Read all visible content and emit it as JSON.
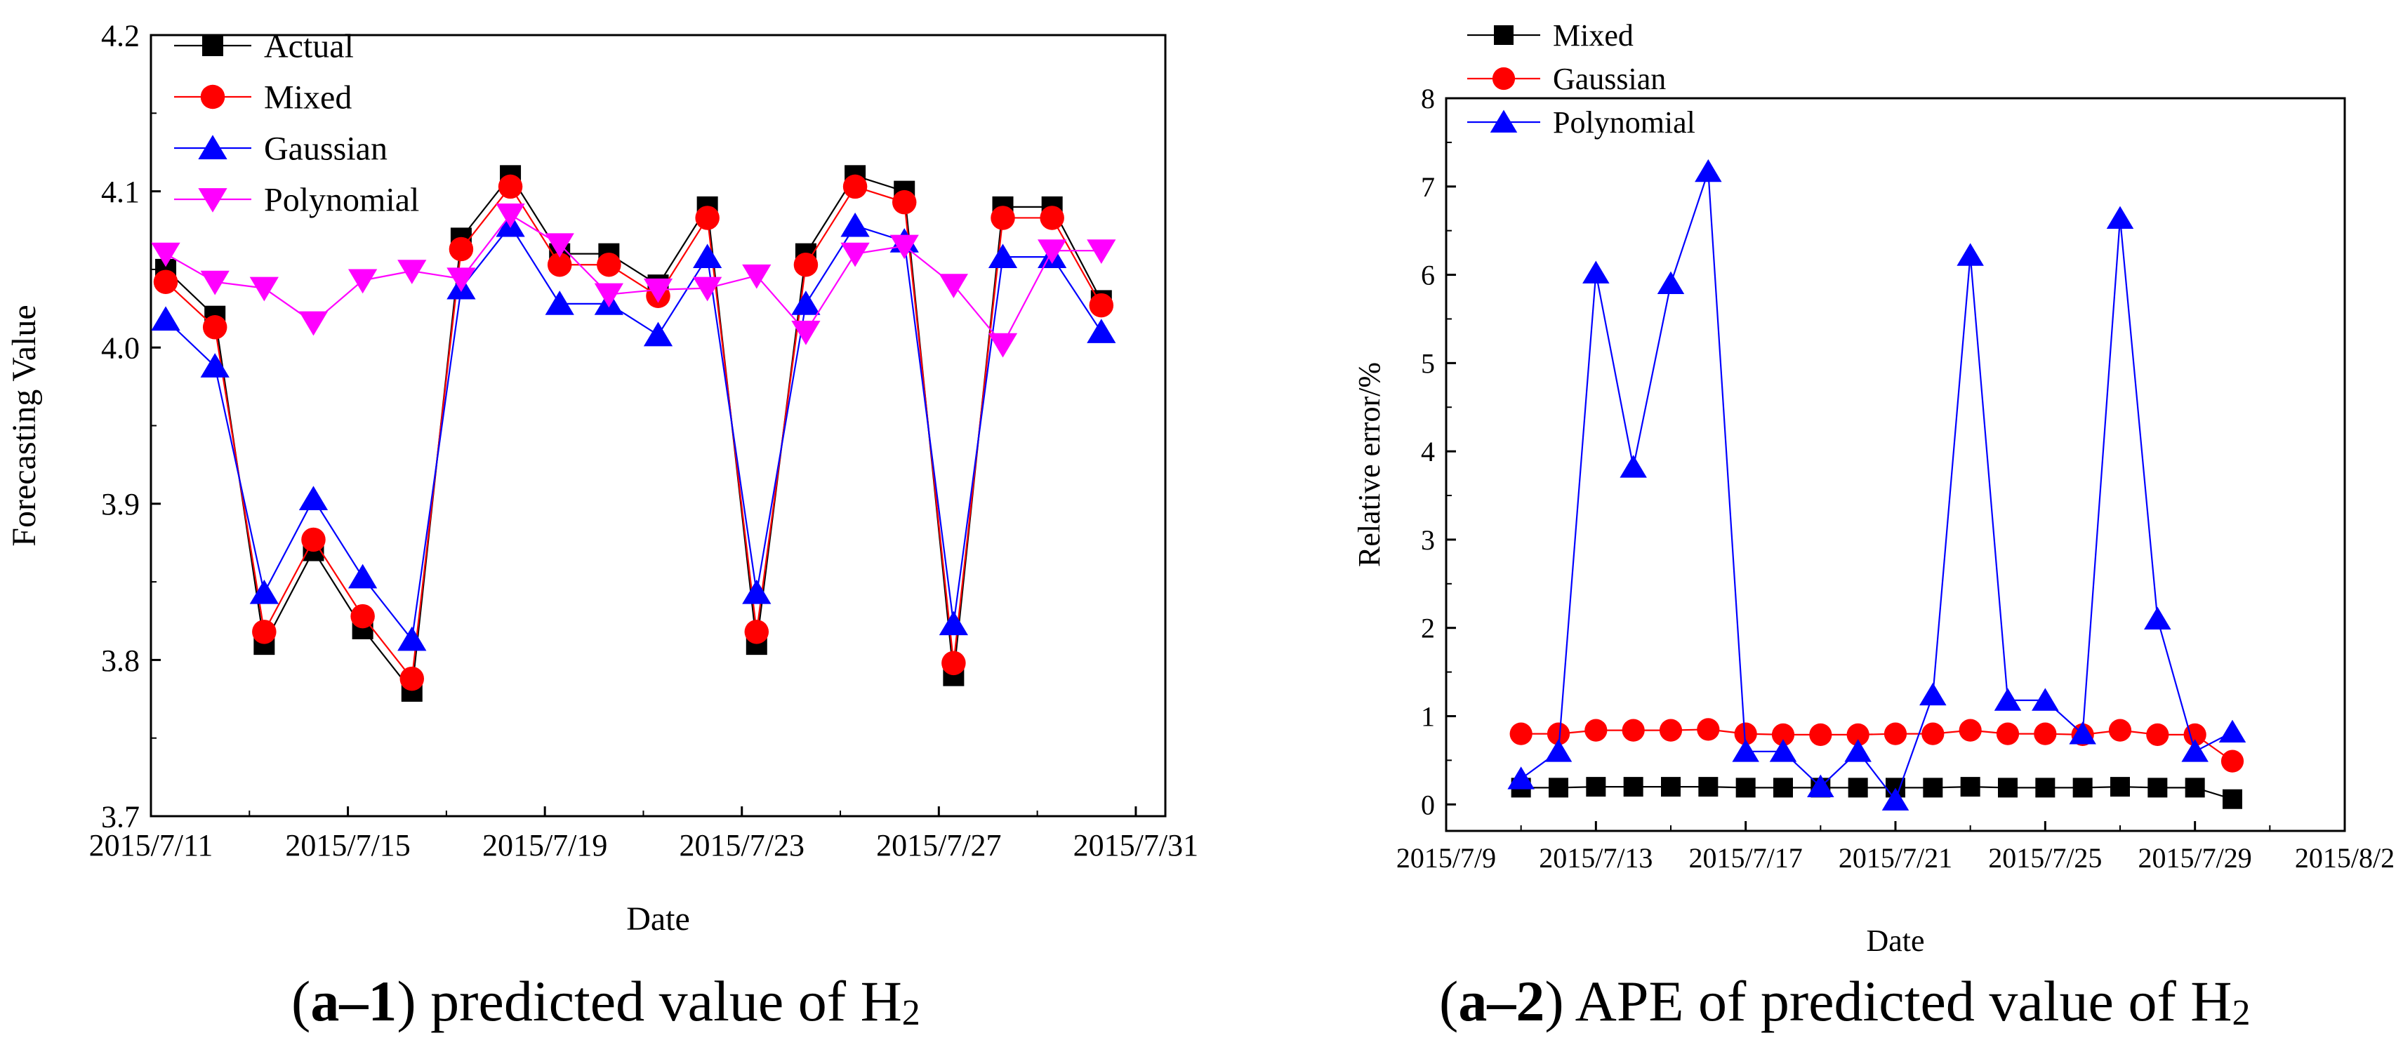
{
  "chart_data": [
    {
      "type": "line",
      "id": "a1",
      "title": "",
      "xlabel": "Date",
      "ylabel": "Forecasting Value",
      "ylim": [
        3.7,
        4.2
      ],
      "yticks": [
        "3.7",
        "3.8",
        "3.9",
        "4.0",
        "4.1",
        "4.2"
      ],
      "xlim": [
        0,
        20.6
      ],
      "xticks": [
        {
          "pos": 0,
          "label": "2015/7/11"
        },
        {
          "pos": 4,
          "label": "2015/7/15"
        },
        {
          "pos": 8,
          "label": "2015/7/19"
        },
        {
          "pos": 12,
          "label": "2015/7/23"
        },
        {
          "pos": 16,
          "label": "2015/7/27"
        },
        {
          "pos": 20,
          "label": "2015/7/31"
        }
      ],
      "x": [
        0.3,
        1.3,
        2.3,
        3.3,
        4.3,
        5.3,
        6.3,
        7.3,
        8.3,
        9.3,
        10.3,
        11.3,
        12.3,
        13.3,
        14.3,
        15.3,
        16.3,
        17.3,
        18.3,
        19.3
      ],
      "legend_position": "top-left",
      "series": [
        {
          "name": "Actual",
          "color": "#000000",
          "marker": "square",
          "line": true,
          "values": [
            4.05,
            4.02,
            3.81,
            3.87,
            3.82,
            3.78,
            4.07,
            4.11,
            4.06,
            4.06,
            4.04,
            4.09,
            3.81,
            4.06,
            4.11,
            4.1,
            3.79,
            4.09,
            4.09,
            4.03
          ]
        },
        {
          "name": "Mixed",
          "color": "#ff0000",
          "marker": "circle",
          "line": true,
          "values": [
            4.042,
            4.013,
            3.818,
            3.877,
            3.828,
            3.788,
            4.063,
            4.103,
            4.053,
            4.053,
            4.033,
            4.083,
            3.818,
            4.053,
            4.103,
            4.093,
            3.798,
            4.083,
            4.083,
            4.027
          ]
        },
        {
          "name": "Gaussian",
          "color": "#0000ff",
          "marker": "triangle-up",
          "line": true,
          "values": [
            4.018,
            3.988,
            3.843,
            3.903,
            3.853,
            3.813,
            4.038,
            4.078,
            4.028,
            4.028,
            4.008,
            4.058,
            3.843,
            4.028,
            4.078,
            4.068,
            3.823,
            4.058,
            4.058,
            4.01
          ]
        },
        {
          "name": "Polynomial",
          "color": "#ff00ff",
          "marker": "triangle-down",
          "line": true,
          "values": [
            4.06,
            4.042,
            4.038,
            4.016,
            4.043,
            4.049,
            4.044,
            4.085,
            4.066,
            4.034,
            4.037,
            4.038,
            4.046,
            4.01,
            4.06,
            4.065,
            4.04,
            4.002,
            4.062,
            4.062
          ]
        }
      ]
    },
    {
      "type": "line",
      "id": "a2",
      "title": "",
      "xlabel": "Date",
      "ylabel": "Relative error/%",
      "ylim": [
        -0.3,
        8
      ],
      "yticks": [
        "0",
        "1",
        "2",
        "3",
        "4",
        "5",
        "6",
        "7",
        "8"
      ],
      "xlim": [
        0,
        24
      ],
      "xticks": [
        {
          "pos": 0,
          "label": "2015/7/9"
        },
        {
          "pos": 4,
          "label": "2015/7/13"
        },
        {
          "pos": 8,
          "label": "2015/7/17"
        },
        {
          "pos": 12,
          "label": "2015/7/21"
        },
        {
          "pos": 16,
          "label": "2015/7/25"
        },
        {
          "pos": 20,
          "label": "2015/7/29"
        },
        {
          "pos": 24,
          "label": "2015/8/2"
        }
      ],
      "x": [
        2,
        3,
        4,
        5,
        6,
        7,
        8,
        9,
        10,
        11,
        12,
        13,
        14,
        15,
        16,
        17,
        18,
        19,
        20,
        21
      ],
      "legend_position": "top-left",
      "series": [
        {
          "name": "Mixed",
          "color": "#000000",
          "marker": "square",
          "line": true,
          "values": [
            0.19,
            0.19,
            0.2,
            0.2,
            0.2,
            0.2,
            0.19,
            0.19,
            0.19,
            0.19,
            0.19,
            0.19,
            0.2,
            0.19,
            0.19,
            0.19,
            0.2,
            0.19,
            0.19,
            0.06
          ]
        },
        {
          "name": "Gaussian",
          "color": "#ff0000",
          "marker": "circle",
          "line": true,
          "values": [
            0.8,
            0.8,
            0.84,
            0.84,
            0.84,
            0.85,
            0.8,
            0.79,
            0.79,
            0.79,
            0.8,
            0.8,
            0.84,
            0.8,
            0.8,
            0.79,
            0.84,
            0.79,
            0.79,
            0.49
          ]
        },
        {
          "name": "Polynomial",
          "color": "#0000ff",
          "marker": "triangle-up",
          "line": true,
          "values": [
            0.29,
            0.6,
            6.02,
            3.82,
            5.9,
            7.17,
            0.6,
            0.6,
            0.2,
            0.6,
            0.05,
            1.24,
            6.22,
            1.18,
            1.18,
            0.8,
            6.64,
            2.1,
            0.6,
            0.82
          ]
        }
      ]
    }
  ],
  "captions": [
    {
      "bold": "a–1",
      "text": " predicted value of H",
      "sub": "2"
    },
    {
      "bold": "a–2",
      "text": " APE of predicted value of H",
      "sub": "2"
    }
  ]
}
